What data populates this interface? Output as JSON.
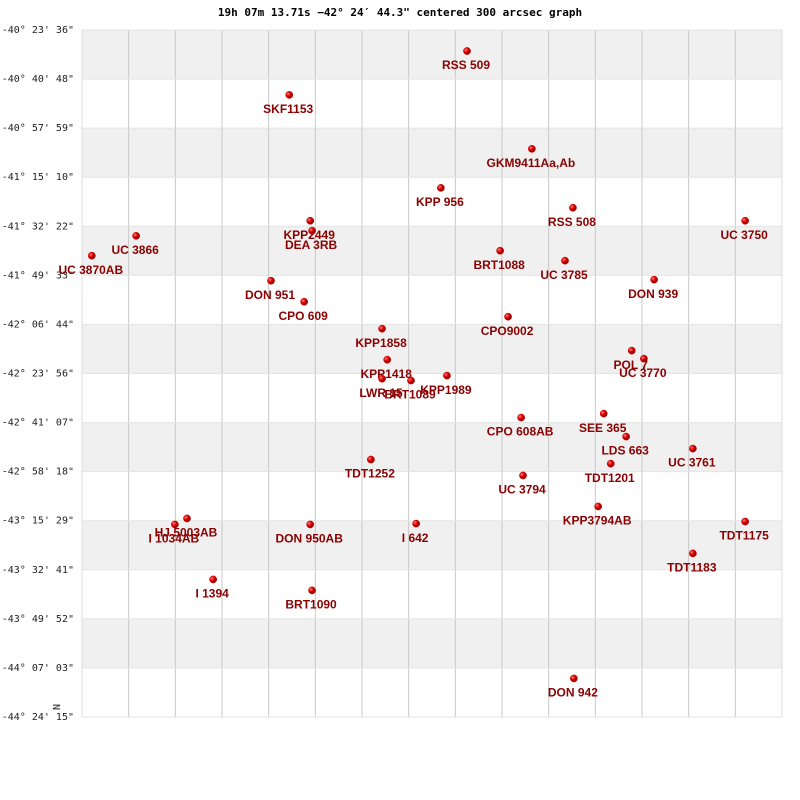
{
  "chart_data": {
    "type": "scatter",
    "title": "19h 07m 13.71s −42° 24′ 44.3\" centered 300 arcsec graph",
    "north_label": "N",
    "color": "#cc0000",
    "label_color": "#8b0000",
    "grid": true,
    "xlim": [
      0,
      15
    ],
    "xticks": [
      1,
      2,
      3,
      4,
      5,
      6,
      7,
      8,
      9,
      10,
      11,
      12,
      13,
      14
    ],
    "ylim": [
      -44.4042,
      -40.3933
    ],
    "yticks": [
      {
        "value": -40.3933,
        "label": "-40° 23' 36\""
      },
      {
        "value": -40.68,
        "label": "-40° 40' 48\""
      },
      {
        "value": -40.9664,
        "label": "-40° 57' 59\""
      },
      {
        "value": -41.2528,
        "label": "-41° 15' 10\""
      },
      {
        "value": -41.5394,
        "label": "-41° 32' 22\""
      },
      {
        "value": -41.8258,
        "label": "-41° 49' 33\""
      },
      {
        "value": -42.1122,
        "label": "-42° 06' 44\""
      },
      {
        "value": -42.3989,
        "label": "-42° 23' 56\""
      },
      {
        "value": -42.6853,
        "label": "-42° 41' 07\""
      },
      {
        "value": -42.9717,
        "label": "-42° 58' 18\""
      },
      {
        "value": -43.2581,
        "label": "-43° 15' 29\""
      },
      {
        "value": -43.5447,
        "label": "-43° 32' 41\""
      },
      {
        "value": -43.8311,
        "label": "-43° 49' 52\""
      },
      {
        "value": -44.1175,
        "label": "-44° 07' 03\""
      },
      {
        "value": -44.4042,
        "label": "-44° 24' 15\""
      }
    ],
    "points": [
      {
        "label": "RSS 509",
        "x": 8.25,
        "y": -40.516
      },
      {
        "label": "SKF1153",
        "x": 4.44,
        "y": -40.772
      },
      {
        "label": "GKM9411Aa,Ab",
        "x": 9.64,
        "y": -41.087
      },
      {
        "label": "KPP 956",
        "x": 7.69,
        "y": -41.315
      },
      {
        "label": "RSS 508",
        "x": 10.52,
        "y": -41.431
      },
      {
        "label": "UC 3750",
        "x": 14.21,
        "y": -41.507
      },
      {
        "label": "KPP2449",
        "x": 4.89,
        "y": -41.507
      },
      {
        "label": "DEA 3RB",
        "x": 4.93,
        "y": -41.565
      },
      {
        "label": "UC 3866",
        "x": 1.16,
        "y": -41.595
      },
      {
        "label": "UC 3870AB",
        "x": 0.21,
        "y": -41.711
      },
      {
        "label": "BRT1088",
        "x": 8.96,
        "y": -41.682
      },
      {
        "label": "UC 3785",
        "x": 10.35,
        "y": -41.74
      },
      {
        "label": "DON 939",
        "x": 12.26,
        "y": -41.851
      },
      {
        "label": "DON 951",
        "x": 4.05,
        "y": -41.857
      },
      {
        "label": "CPO 609",
        "x": 4.76,
        "y": -41.98
      },
      {
        "label": "CPO9002",
        "x": 9.13,
        "y": -42.067
      },
      {
        "label": "KPP1858",
        "x": 6.43,
        "y": -42.137
      },
      {
        "label": "POL 7",
        "x": 11.78,
        "y": -42.265
      },
      {
        "label": "UC 3770",
        "x": 12.04,
        "y": -42.312
      },
      {
        "label": "KPP1418",
        "x": 6.54,
        "y": -42.318
      },
      {
        "label": "KPP1989",
        "x": 7.82,
        "y": -42.411
      },
      {
        "label": "LWR 15",
        "x": 6.43,
        "y": -42.429
      },
      {
        "label": "BRT1089",
        "x": 7.05,
        "y": -42.44
      },
      {
        "label": "CPO 608AB",
        "x": 9.41,
        "y": -42.656
      },
      {
        "label": "SEE 365",
        "x": 11.18,
        "y": -42.633
      },
      {
        "label": "LDS 663",
        "x": 11.66,
        "y": -42.767
      },
      {
        "label": "UC 3761",
        "x": 13.09,
        "y": -42.837
      },
      {
        "label": "TDT1201",
        "x": 11.33,
        "y": -42.925
      },
      {
        "label": "TDT1252",
        "x": 6.19,
        "y": -42.901
      },
      {
        "label": "UC 3794",
        "x": 9.45,
        "y": -42.994
      },
      {
        "label": "KPP3794AB",
        "x": 11.06,
        "y": -43.175
      },
      {
        "label": "TDT1175",
        "x": 14.21,
        "y": -43.263
      },
      {
        "label": "I 642",
        "x": 7.16,
        "y": -43.275
      },
      {
        "label": "DON 950AB",
        "x": 4.89,
        "y": -43.28
      },
      {
        "label": "HJ 5003AB",
        "x": 2.25,
        "y": -43.245
      },
      {
        "label": "I 1034AB",
        "x": 1.99,
        "y": -43.28
      },
      {
        "label": "TDT1183",
        "x": 13.09,
        "y": -43.449
      },
      {
        "label": "I 1394",
        "x": 2.81,
        "y": -43.601
      },
      {
        "label": "BRT1090",
        "x": 4.93,
        "y": -43.665
      },
      {
        "label": "DON 942",
        "x": 10.54,
        "y": -44.179
      }
    ]
  }
}
